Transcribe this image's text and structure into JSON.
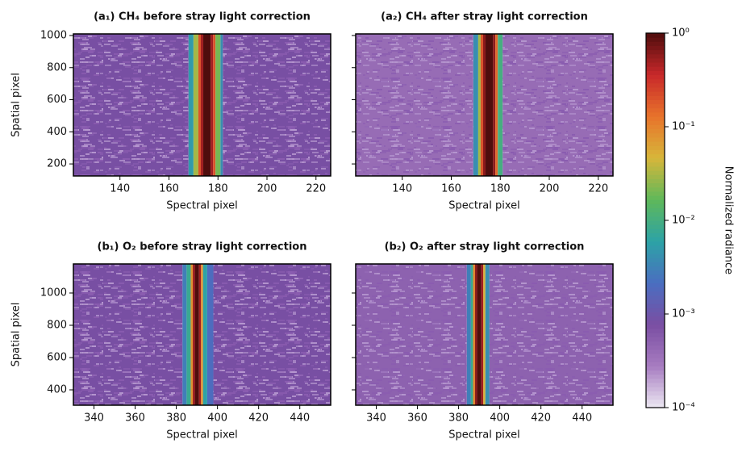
{
  "chart_data": [
    {
      "type": "heatmap",
      "title": "(a₁) CH₄ before stray light correction",
      "xlabel": "Spectral pixel",
      "ylabel": "Spatial pixel",
      "xlim": [
        121,
        226
      ],
      "ylim": [
        125,
        1010
      ],
      "xticks": [
        140,
        160,
        180,
        200,
        220
      ],
      "yticks": [
        200,
        400,
        600,
        800,
        1000
      ],
      "show_ytick_labels": true,
      "edges": [
        121,
        168,
        170,
        172,
        173,
        174,
        177,
        178,
        179,
        181,
        182,
        226
      ],
      "values": [
        0.0008,
        0.005,
        0.03,
        0.2,
        0.5,
        1,
        0.5,
        0.2,
        0.02,
        0.004,
        0.0008
      ]
    },
    {
      "type": "heatmap",
      "title": "(a₂) CH₄ after stray light correction",
      "xlabel": "Spectral pixel",
      "xlim": [
        121,
        226
      ],
      "ylim": [
        125,
        1010
      ],
      "xticks": [
        140,
        160,
        180,
        200,
        220
      ],
      "yticks": [
        200,
        400,
        600,
        800,
        1000
      ],
      "show_ytick_labels": false,
      "edges": [
        121,
        169,
        171,
        172,
        173,
        174,
        177,
        178,
        179,
        181,
        226
      ],
      "values": [
        0.0004,
        0.004,
        0.03,
        0.2,
        0.6,
        1,
        0.6,
        0.15,
        0.01,
        0.0004
      ]
    },
    {
      "type": "heatmap",
      "title": "(b₁) O₂ before stray light correction",
      "xlabel": "Spectral pixel",
      "ylabel": "Spatial pixel",
      "xlim": [
        330,
        455
      ],
      "ylim": [
        305,
        1180
      ],
      "xticks": [
        340,
        360,
        380,
        400,
        420,
        440
      ],
      "yticks": [
        400,
        600,
        800,
        1000
      ],
      "show_ytick_labels": true,
      "edges": [
        330,
        383,
        385,
        387,
        388,
        389,
        391,
        392,
        393,
        395,
        398,
        455
      ],
      "values": [
        0.0008,
        0.003,
        0.008,
        0.08,
        0.5,
        1,
        0.5,
        0.08,
        0.006,
        0.002,
        0.0008
      ]
    },
    {
      "type": "heatmap",
      "title": "(b₂) O₂ after stray light correction",
      "xlabel": "Spectral pixel",
      "xlim": [
        330,
        455
      ],
      "ylim": [
        305,
        1180
      ],
      "xticks": [
        340,
        360,
        380,
        400,
        420,
        440
      ],
      "yticks": [
        400,
        600,
        800,
        1000
      ],
      "show_ytick_labels": false,
      "edges": [
        330,
        384,
        386,
        387,
        388,
        389,
        391,
        392,
        393,
        395,
        455
      ],
      "values": [
        0.0005,
        0.003,
        0.008,
        0.1,
        0.6,
        1,
        0.5,
        0.05,
        0.004,
        0.0005
      ]
    }
  ],
  "colorbar": {
    "label": "Normalized radiance",
    "log": true,
    "lim": [
      0.0001,
      1
    ],
    "ticks": [
      {
        "value": 1,
        "label": "10⁰"
      },
      {
        "value": 0.1,
        "label": "10⁻¹"
      },
      {
        "value": 0.01,
        "label": "10⁻²"
      },
      {
        "value": 0.001,
        "label": "10⁻³"
      },
      {
        "value": 0.0001,
        "label": "10⁻⁴"
      }
    ],
    "colormap": [
      "#ece8f3",
      "#a77cc0",
      "#7a4ea2",
      "#4a6ec0",
      "#2ca3a6",
      "#5fb85a",
      "#d7b63a",
      "#e8732b",
      "#c8282a",
      "#4f0d0d"
    ]
  }
}
